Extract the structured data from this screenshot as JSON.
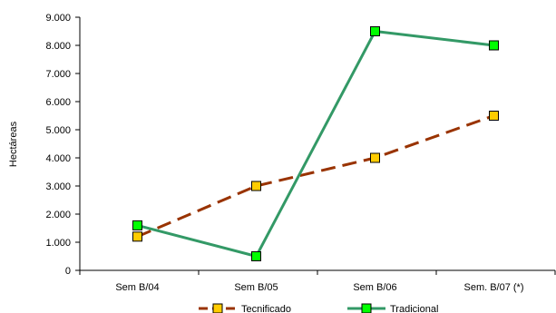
{
  "chart_data": {
    "type": "line",
    "title": "",
    "xlabel": "",
    "ylabel": "Hectáreas",
    "categories": [
      "Sem B/04",
      "Sem B/05",
      "Sem B/06",
      "Sem. B/07 (*)"
    ],
    "ylim": [
      0,
      9000
    ],
    "yticks": [
      0,
      1000,
      2000,
      3000,
      4000,
      5000,
      6000,
      7000,
      8000,
      9000
    ],
    "ytick_labels": [
      "0",
      "1.000",
      "2.000",
      "3.000",
      "4.000",
      "5.000",
      "6.000",
      "7.000",
      "8.000",
      "9.000"
    ],
    "grid": false,
    "legend_position": "bottom",
    "series": [
      {
        "name": "Tecnificado",
        "values": [
          1200,
          3000,
          4000,
          5500
        ],
        "line_color": "#993300",
        "marker_fill": "#FFCC00",
        "line_style": "dashed"
      },
      {
        "name": "Tradicional",
        "values": [
          1600,
          500,
          8500,
          8000
        ],
        "line_color": "#339966",
        "marker_fill": "#00FF00",
        "line_style": "solid"
      }
    ]
  }
}
